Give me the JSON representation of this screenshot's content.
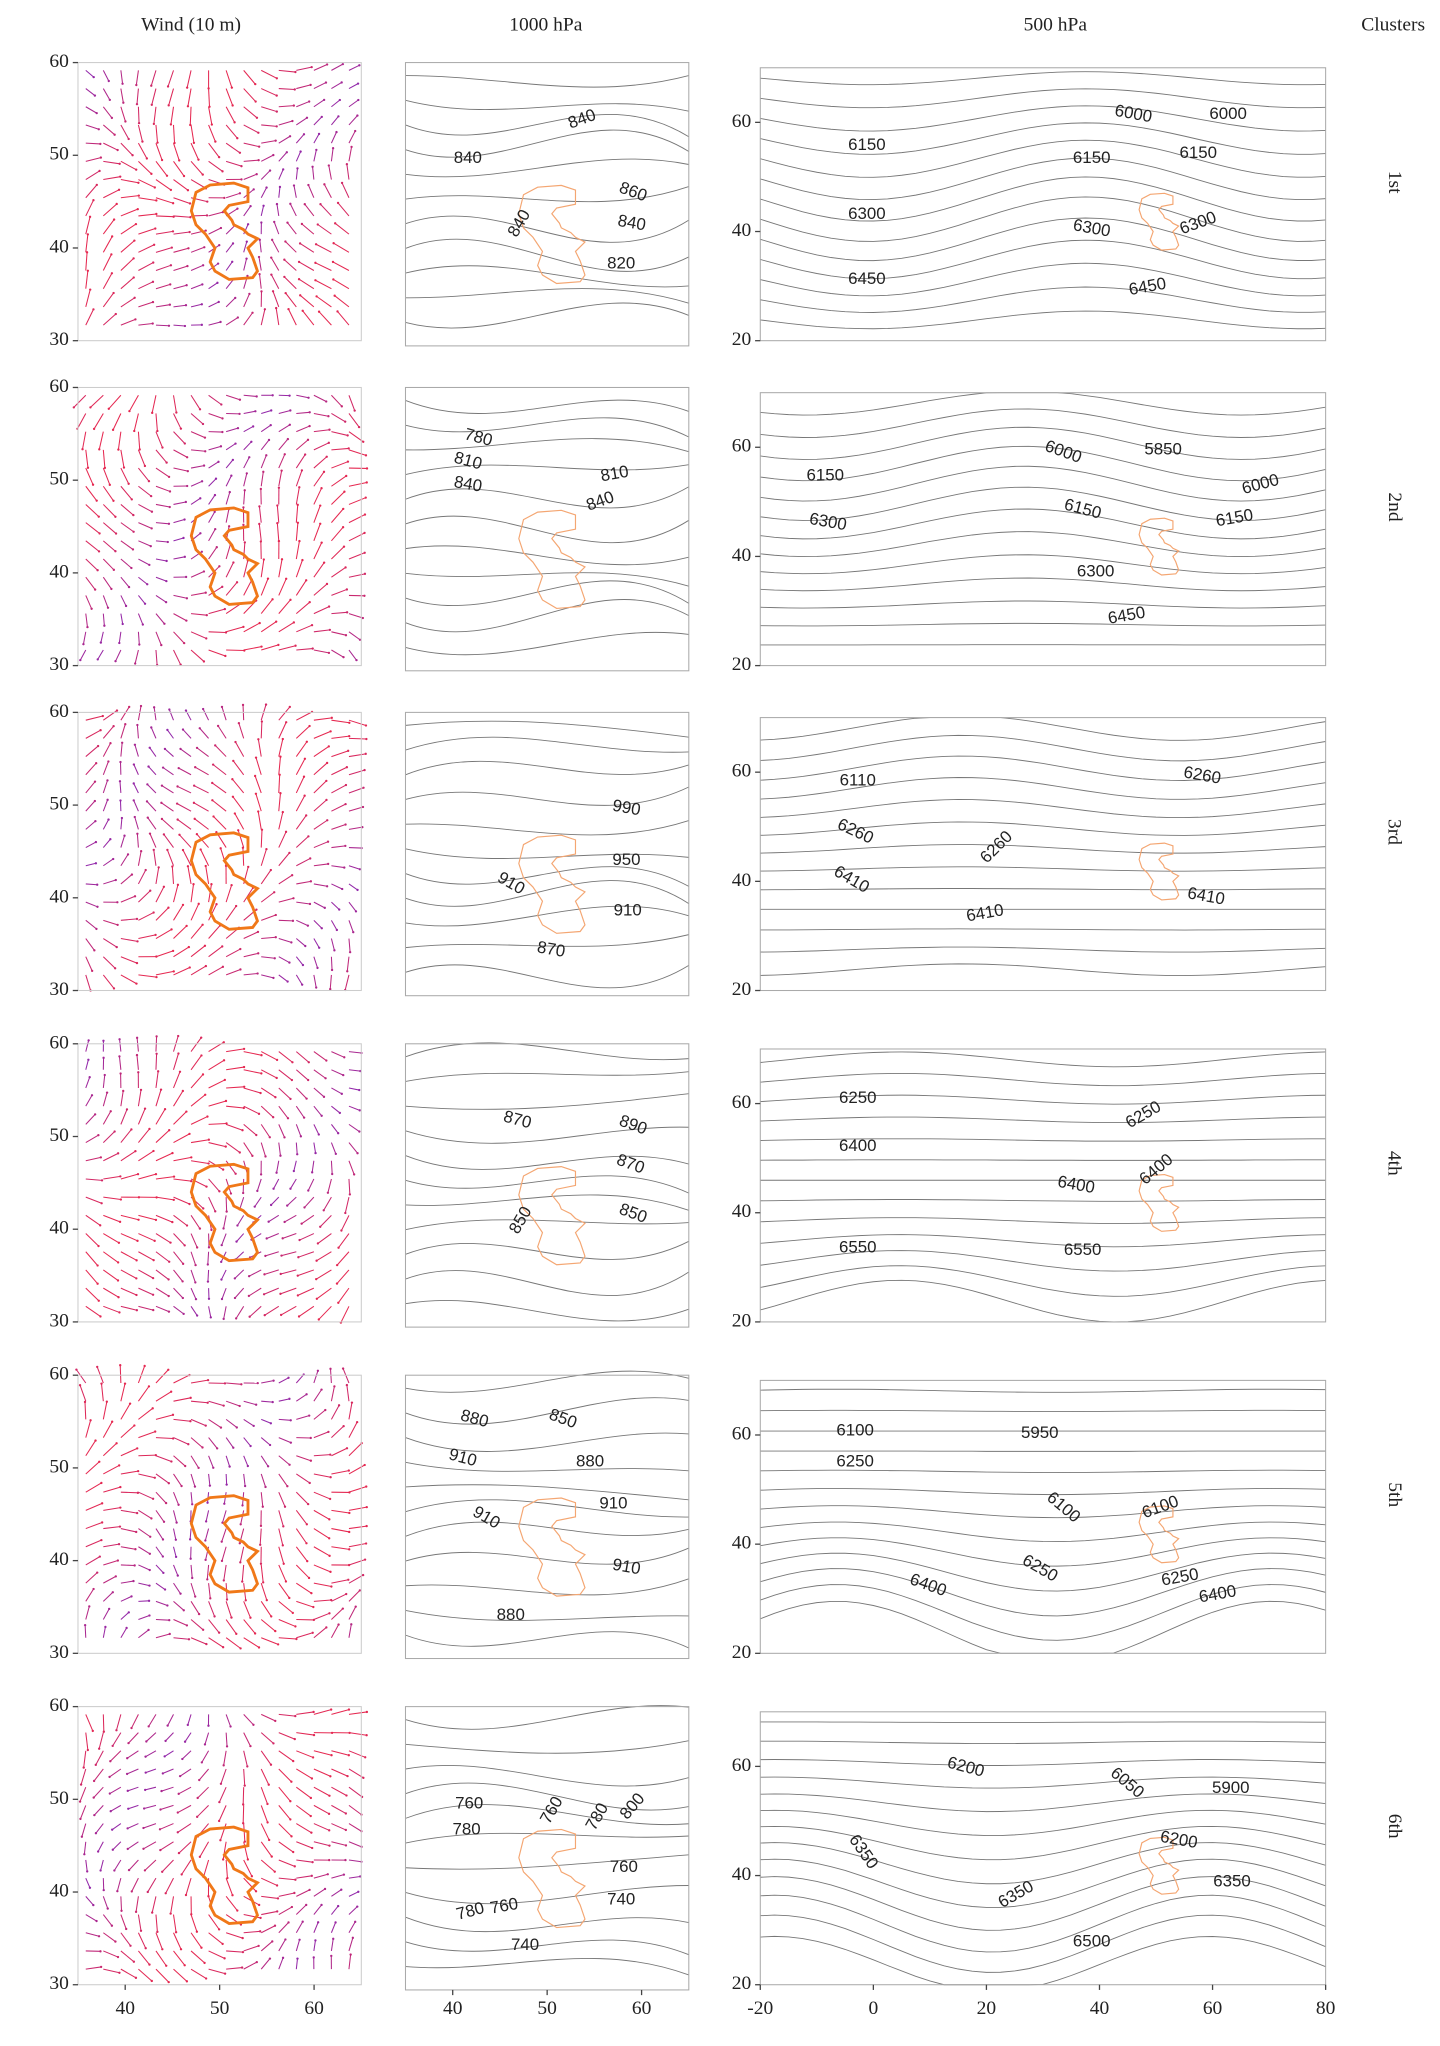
{
  "headers": {
    "wind": "Wind (10 m)",
    "hpa1000": "1000 hPa",
    "hpa500": "500 hPa",
    "clusters": "Clusters"
  },
  "axes": {
    "wind": {
      "xlim": [
        35,
        65
      ],
      "ylim": [
        30,
        60
      ],
      "xticks": [
        40,
        50,
        60
      ],
      "yticks": [
        30,
        40,
        50,
        60
      ]
    },
    "hpa1000": {
      "xlim": [
        35,
        65
      ],
      "xticks": [
        40,
        50,
        60
      ]
    },
    "hpa500": {
      "xlim": [
        -20,
        80
      ],
      "ylim": [
        20,
        70
      ],
      "xticks": [
        -20,
        0,
        20,
        40,
        60,
        80
      ],
      "yticks": [
        20,
        40,
        60
      ]
    }
  },
  "rows": [
    {
      "cluster": "1st",
      "p1000": [
        840,
        840,
        860,
        840,
        840,
        820
      ],
      "p500": [
        6000,
        6000,
        6150,
        6150,
        6150,
        6300,
        6300,
        6300,
        6450,
        6450
      ]
    },
    {
      "cluster": "2nd",
      "p1000": [
        780,
        810,
        840,
        810,
        840
      ],
      "p500": [
        6000,
        5850,
        6150,
        6150,
        6000,
        6150,
        6300,
        6300,
        6450
      ]
    },
    {
      "cluster": "3rd",
      "p1000": [
        990,
        950,
        910,
        910,
        870
      ],
      "p500": [
        6110,
        6260,
        6260,
        6260,
        6410,
        6410,
        6410
      ]
    },
    {
      "cluster": "4th",
      "p1000": [
        870,
        890,
        870,
        850,
        850
      ],
      "p500": [
        6250,
        6250,
        6400,
        6400,
        6400,
        6550,
        6550
      ]
    },
    {
      "cluster": "5th",
      "p1000": [
        880,
        850,
        910,
        880,
        910,
        910,
        910,
        880
      ],
      "p500": [
        6100,
        5950,
        6250,
        6100,
        6100,
        6250,
        6400,
        6250,
        6400
      ]
    },
    {
      "cluster": "6th",
      "p1000": [
        760,
        780,
        760,
        780,
        800,
        760,
        740,
        780,
        760,
        740
      ],
      "p500": [
        6200,
        6050,
        5900,
        6350,
        6200,
        6350,
        6350,
        6500
      ]
    }
  ]
}
